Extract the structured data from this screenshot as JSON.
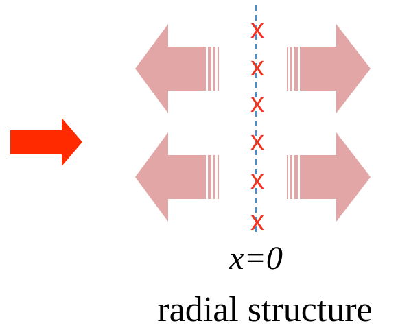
{
  "markers": [
    "x",
    "x",
    "x",
    "x",
    "x",
    "x"
  ],
  "axis_label": "x=0",
  "caption": "radial structure"
}
